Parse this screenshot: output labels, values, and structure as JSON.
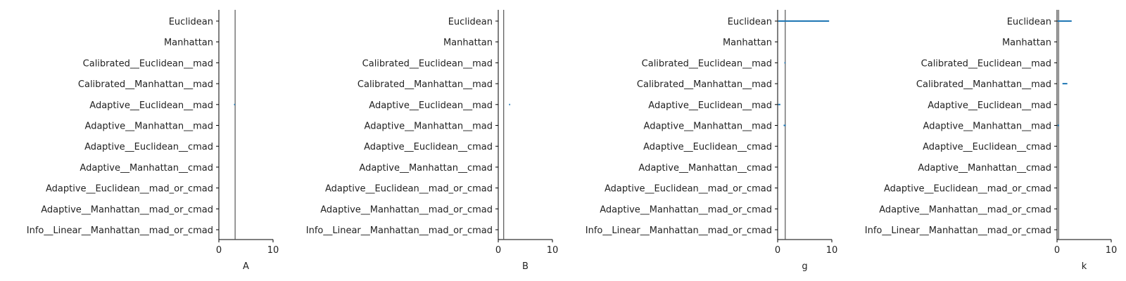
{
  "chart_data": [
    {
      "type": "errorbar",
      "xlabel": "A",
      "xlim": [
        0,
        10
      ],
      "xticks": [
        "0",
        "10"
      ],
      "reference_line": 3,
      "categories": [
        "Euclidean",
        "Manhattan",
        "Calibrated__Euclidean__mad",
        "Calibrated__Manhattan__mad",
        "Adaptive__Euclidean__mad",
        "Adaptive__Manhattan__mad",
        "Adaptive__Euclidean__cmad",
        "Adaptive__Manhattan__cmad",
        "Adaptive__Euclidean__mad_or_cmad",
        "Adaptive__Manhattan__mad_or_cmad",
        "Info__Linear__Manhattan__mad_or_cmad"
      ],
      "intervals": [
        {
          "category": "Adaptive__Euclidean__mad",
          "low": 2.8,
          "high": 3.0
        }
      ]
    },
    {
      "type": "errorbar",
      "xlabel": "B",
      "xlim": [
        0,
        10
      ],
      "xticks": [
        "0",
        "10"
      ],
      "reference_line": 1,
      "categories": [
        "Euclidean",
        "Manhattan",
        "Calibrated__Euclidean__mad",
        "Calibrated__Manhattan__mad",
        "Adaptive__Euclidean__mad",
        "Adaptive__Manhattan__mad",
        "Adaptive__Euclidean__cmad",
        "Adaptive__Manhattan__cmad",
        "Adaptive__Euclidean__mad_or_cmad",
        "Adaptive__Manhattan__mad_or_cmad",
        "Info__Linear__Manhattan__mad_or_cmad"
      ],
      "intervals": [
        {
          "category": "Adaptive__Euclidean__mad",
          "low": 2.0,
          "high": 2.2
        }
      ]
    },
    {
      "type": "errorbar",
      "xlabel": "g",
      "xlim": [
        0,
        10
      ],
      "xticks": [
        "0",
        "10"
      ],
      "reference_line": 1.4,
      "categories": [
        "Euclidean",
        "Manhattan",
        "Calibrated__Euclidean__mad",
        "Calibrated__Manhattan__mad",
        "Adaptive__Euclidean__mad",
        "Adaptive__Manhattan__mad",
        "Adaptive__Euclidean__cmad",
        "Adaptive__Manhattan__cmad",
        "Adaptive__Euclidean__mad_or_cmad",
        "Adaptive__Manhattan__mad_or_cmad",
        "Info__Linear__Manhattan__mad_or_cmad"
      ],
      "intervals": [
        {
          "category": "Euclidean",
          "low": 0.1,
          "high": 9.5
        },
        {
          "category": "Calibrated__Euclidean__mad",
          "low": 1.25,
          "high": 1.45
        },
        {
          "category": "Adaptive__Euclidean__mad",
          "low": 0.1,
          "high": 0.5
        },
        {
          "category": "Adaptive__Manhattan__mad",
          "low": 1.1,
          "high": 1.5
        }
      ]
    },
    {
      "type": "errorbar",
      "xlabel": "k",
      "xlim": [
        0,
        10
      ],
      "xticks": [
        "0",
        "10"
      ],
      "reference_line": 0.3,
      "categories": [
        "Euclidean",
        "Manhattan",
        "Calibrated__Euclidean__mad",
        "Calibrated__Manhattan__mad",
        "Adaptive__Euclidean__mad",
        "Adaptive__Manhattan__mad",
        "Adaptive__Euclidean__cmad",
        "Adaptive__Manhattan__cmad",
        "Adaptive__Euclidean__mad_or_cmad",
        "Adaptive__Manhattan__mad_or_cmad",
        "Info__Linear__Manhattan__mad_or_cmad"
      ],
      "intervals": [
        {
          "category": "Euclidean",
          "low": 0.1,
          "high": 2.7
        },
        {
          "category": "Calibrated__Manhattan__mad",
          "low": 1.0,
          "high": 1.9
        },
        {
          "category": "Adaptive__Manhattan__mad",
          "low": 0.1,
          "high": 0.4
        }
      ]
    }
  ],
  "colors": {
    "interval": "#1f77b4",
    "reference_line": "#555555",
    "axis": "#000000"
  }
}
